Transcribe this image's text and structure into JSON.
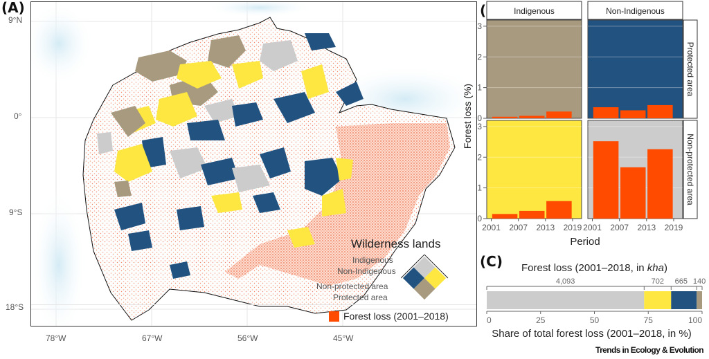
{
  "figure": {
    "source_credit": "Trends in Ecology & Evolution",
    "panel_labels": [
      "(A)",
      "(B)",
      "(C)"
    ]
  },
  "map": {
    "lat_labels": [
      "9°N",
      "0°",
      "9°S",
      "18°S"
    ],
    "lon_labels": [
      "78°W",
      "67°W",
      "56°W",
      "45°W"
    ],
    "legend": {
      "title": "Wilderness lands",
      "labels": [
        "Indigenous",
        "Non-Indigenous",
        "Non-protected area",
        "Protected area"
      ],
      "forest_loss_label": "Forest loss (2001–2018)"
    }
  },
  "colors": {
    "indigenous_protected": "#a89a7f",
    "non_indigenous_protected": "#22527f",
    "indigenous_non_protected": "#fde740",
    "non_indigenous_non_protected": "#cccccc",
    "forest_loss": "#ff4b00",
    "sea": "#d6ecf5"
  },
  "chart_data": [
    {
      "type": "bar",
      "title": "",
      "xlabel": "Period",
      "ylabel": "Forest loss (%)",
      "ylim": [
        0,
        3.2
      ],
      "yticks": [
        0,
        1,
        2,
        3
      ],
      "xticks": [
        "2001",
        "2007",
        "2013",
        "2019"
      ],
      "categories": [
        "2001–2006",
        "2007–2012",
        "2013–2018"
      ],
      "facet_columns": [
        "Indigenous",
        "Non-Indigenous"
      ],
      "facet_rows": [
        "Protected area",
        "Non-protected area"
      ],
      "panels": [
        {
          "column": "Indigenous",
          "row": "Protected area",
          "values": [
            0.05,
            0.08,
            0.22
          ]
        },
        {
          "column": "Non-Indigenous",
          "row": "Protected area",
          "values": [
            0.36,
            0.26,
            0.43
          ]
        },
        {
          "column": "Indigenous",
          "row": "Non-protected area",
          "values": [
            0.15,
            0.25,
            0.57
          ]
        },
        {
          "column": "Non-Indigenous",
          "row": "Non-protected area",
          "values": [
            2.52,
            1.67,
            2.26
          ]
        }
      ],
      "grid": true
    },
    {
      "type": "bar",
      "orientation": "horizontal-stacked",
      "title": "Forest loss (2001–2018, in kha)",
      "title_plain": "Forest loss (2001–2018, in ",
      "title_italic": "kha",
      "title_end": ")",
      "xlabel": "Share of total forest loss (2001–2018, in %)",
      "xlim": [
        0,
        100
      ],
      "xticks": [
        "0",
        "25",
        "50",
        "75",
        "100"
      ],
      "series": [
        {
          "name": "Non-Indigenous, Non-protected area",
          "value_kha": 4093,
          "label": "4,093"
        },
        {
          "name": "Indigenous, Non-protected area",
          "value_kha": 702,
          "label": "702"
        },
        {
          "name": "Non-Indigenous, Protected area",
          "value_kha": 665,
          "label": "665"
        },
        {
          "name": "Indigenous, Protected area",
          "value_kha": 140,
          "label": "140"
        }
      ]
    }
  ]
}
